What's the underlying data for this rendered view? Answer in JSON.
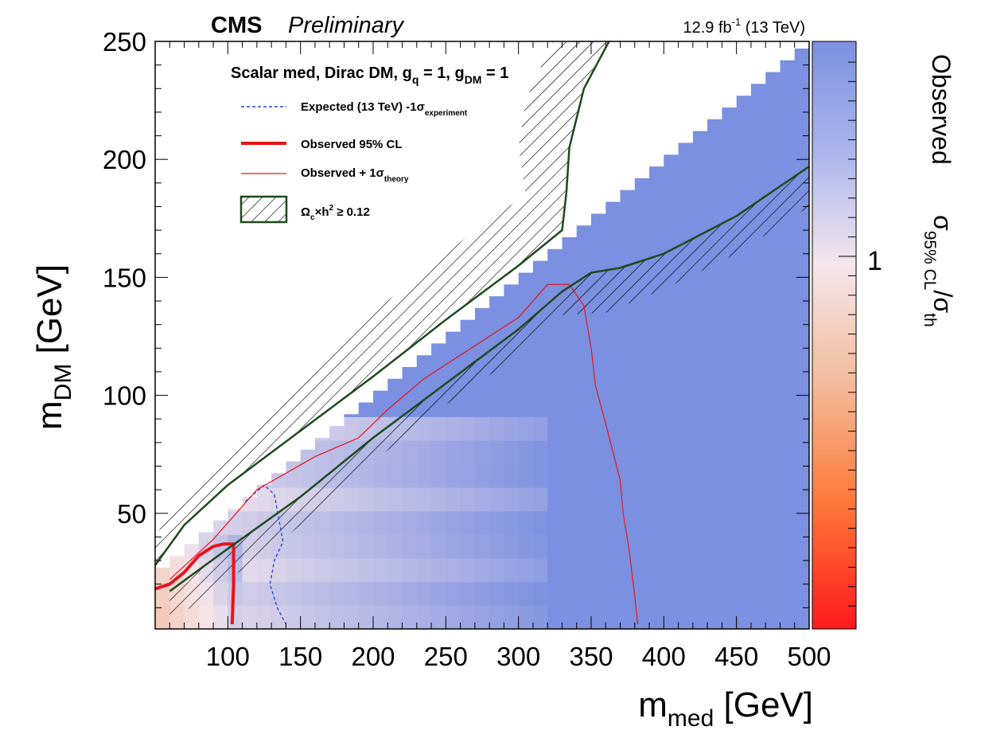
{
  "header": {
    "experiment": "CMS",
    "status": "Preliminary",
    "lumi_value": "12.9 fb",
    "lumi_exponent": "-1",
    "lumi_energy": " (13 TeV)"
  },
  "legend": {
    "title_parts": [
      "Scalar med, Dirac DM, g",
      "q",
      " = 1, g",
      "DM",
      " = 1"
    ],
    "expected_parts": [
      "Expected (13 TeV) -1σ",
      "experiment"
    ],
    "observed": "Observed 95% CL",
    "observed_theory_parts": [
      "Observed + 1σ",
      "theory"
    ],
    "relic_parts": [
      "Ω",
      "c",
      "×h",
      "2",
      " ≥ 0.12"
    ]
  },
  "axes": {
    "x_label_main": "m",
    "x_label_sub": "med",
    "x_label_unit": " [GeV]",
    "y_label_main": "m",
    "y_label_sub": "DM",
    "y_label_unit": " [GeV]",
    "x_ticks": [
      "100",
      "150",
      "200",
      "250",
      "300",
      "350",
      "400",
      "450",
      "500"
    ],
    "y_ticks": [
      "50",
      "100",
      "150",
      "200",
      "250"
    ]
  },
  "colorbar": {
    "title": "Observed",
    "quantity_parts": [
      "σ",
      "95% CL",
      "/σ",
      "th"
    ],
    "tick_label": "1",
    "colors": {
      "low": "#ff1a1a",
      "mid": "#f5e6ec",
      "high": "#7b90e0"
    }
  },
  "colors": {
    "observed_line": "#e8141b",
    "expected_line": "#2040e0",
    "relic_boundary": "#1d4a1d",
    "hatch": "#000000",
    "allowed_fill": "#7b90e0"
  },
  "chart_data": {
    "type": "heatmap",
    "xlim": [
      50,
      500
    ],
    "ylim": [
      1,
      250
    ],
    "z_description": "observed sigma_95%CL / sigma_th, log colour scale, z=1 at white",
    "series": [
      {
        "name": "Expected (13 TeV) -1σ experiment",
        "style": "dashed",
        "points": [
          [
            112,
            55
          ],
          [
            125,
            62
          ],
          [
            132,
            58
          ],
          [
            135,
            48
          ],
          [
            138,
            38
          ],
          [
            132,
            30
          ],
          [
            129,
            20
          ],
          [
            134,
            10
          ],
          [
            140,
            3
          ]
        ]
      },
      {
        "name": "Observed 95% CL",
        "style": "thick",
        "points": [
          [
            50,
            18
          ],
          [
            60,
            20
          ],
          [
            70,
            25
          ],
          [
            80,
            32
          ],
          [
            90,
            36
          ],
          [
            97,
            37
          ],
          [
            104,
            37
          ],
          [
            104,
            20
          ],
          [
            103,
            3
          ]
        ]
      },
      {
        "name": "Observed + 1σ theory",
        "style": "thin",
        "points": [
          [
            60,
            22
          ],
          [
            90,
            39
          ],
          [
            120,
            60
          ],
          [
            160,
            74
          ],
          [
            190,
            82
          ],
          [
            210,
            94
          ],
          [
            235,
            107
          ],
          [
            270,
            121
          ],
          [
            300,
            133
          ],
          [
            320,
            147
          ],
          [
            335,
            147
          ],
          [
            345,
            138
          ],
          [
            350,
            120
          ],
          [
            353,
            104
          ],
          [
            360,
            88
          ],
          [
            370,
            64
          ],
          [
            372,
            50
          ],
          [
            376,
            35
          ],
          [
            380,
            15
          ],
          [
            382,
            3
          ]
        ]
      },
      {
        "name": "Ω_c×h² ≥ 0.12 (upper boundary)",
        "style": "relic",
        "points": [
          [
            50,
            28
          ],
          [
            70,
            45
          ],
          [
            100,
            62
          ],
          [
            150,
            85
          ],
          [
            200,
            108
          ],
          [
            250,
            132
          ],
          [
            300,
            155
          ],
          [
            330,
            170
          ],
          [
            333,
            186
          ],
          [
            335,
            205
          ],
          [
            345,
            230
          ],
          [
            364,
            252
          ]
        ]
      },
      {
        "name": "Ω_c×h² ≥ 0.12 (lower boundary)",
        "style": "relic",
        "points": [
          [
            60,
            17
          ],
          [
            100,
            35
          ],
          [
            150,
            57
          ],
          [
            200,
            82
          ],
          [
            250,
            105
          ],
          [
            300,
            128
          ],
          [
            330,
            144
          ],
          [
            350,
            152
          ],
          [
            370,
            154
          ],
          [
            400,
            160
          ],
          [
            450,
            176
          ],
          [
            500,
            197
          ]
        ]
      }
    ],
    "relic_bands": [
      {
        "name": "upper relic band",
        "points": [
          [
            50,
            28
          ],
          [
            70,
            45
          ],
          [
            100,
            62
          ],
          [
            150,
            85
          ],
          [
            200,
            108
          ],
          [
            250,
            132
          ],
          [
            300,
            155
          ],
          [
            330,
            170
          ],
          [
            333,
            186
          ],
          [
            335,
            205
          ],
          [
            345,
            230
          ],
          [
            364,
            252
          ],
          [
            325,
            252
          ],
          [
            305,
            225
          ],
          [
            300,
            205
          ],
          [
            305,
            185
          ],
          [
            270,
            170
          ],
          [
            230,
            150
          ],
          [
            180,
            125
          ],
          [
            130,
            95
          ],
          [
            90,
            70
          ],
          [
            60,
            50
          ],
          [
            50,
            40
          ]
        ]
      },
      {
        "name": "lower relic band",
        "points": [
          [
            60,
            17
          ],
          [
            100,
            35
          ],
          [
            150,
            57
          ],
          [
            200,
            82
          ],
          [
            250,
            105
          ],
          [
            300,
            128
          ],
          [
            330,
            144
          ],
          [
            350,
            152
          ],
          [
            370,
            154
          ],
          [
            400,
            160
          ],
          [
            450,
            176
          ],
          [
            500,
            197
          ],
          [
            500,
            180
          ],
          [
            450,
            160
          ],
          [
            400,
            145
          ],
          [
            360,
            135
          ],
          [
            330,
            134
          ],
          [
            300,
            117
          ],
          [
            250,
            96
          ],
          [
            200,
            72
          ],
          [
            150,
            45
          ],
          [
            120,
            30
          ],
          [
            100,
            22
          ],
          [
            80,
            12
          ],
          [
            60,
            5
          ]
        ]
      }
    ]
  }
}
